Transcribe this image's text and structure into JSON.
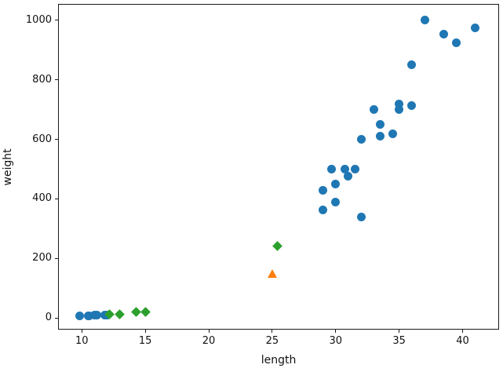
{
  "chart_data": {
    "type": "scatter",
    "title": "",
    "xlabel": "length",
    "ylabel": "weight",
    "xlim": [
      8.19,
      42.81
    ],
    "ylim": [
      -36.8,
      1052.6
    ],
    "x_ticks": [
      10,
      15,
      20,
      25,
      30,
      35,
      40
    ],
    "y_ticks": [
      0,
      200,
      400,
      600,
      800,
      1000
    ],
    "grid": false,
    "legend": "none",
    "series": [
      {
        "name": "blue-circles",
        "marker": "circle",
        "color": "#1f77b4",
        "points": [
          [
            9.8,
            6.7
          ],
          [
            10.5,
            7.5
          ],
          [
            10.6,
            7.0
          ],
          [
            11.0,
            9.7
          ],
          [
            11.2,
            9.8
          ],
          [
            11.8,
            10.0
          ],
          [
            12.0,
            9.8
          ],
          [
            29.0,
            363
          ],
          [
            29.0,
            430
          ],
          [
            29.7,
            500
          ],
          [
            30.0,
            390
          ],
          [
            30.0,
            450
          ],
          [
            30.7,
            500
          ],
          [
            31.0,
            475
          ],
          [
            31.5,
            500
          ],
          [
            32.0,
            340
          ],
          [
            32.0,
            600
          ],
          [
            33.0,
            700
          ],
          [
            33.5,
            610
          ],
          [
            33.5,
            650
          ],
          [
            34.5,
            620
          ],
          [
            35.0,
            700
          ],
          [
            35.0,
            720
          ],
          [
            36.0,
            714
          ],
          [
            36.0,
            850
          ],
          [
            37.0,
            1000
          ],
          [
            38.5,
            955
          ],
          [
            39.5,
            925
          ],
          [
            41.0,
            975
          ]
        ]
      },
      {
        "name": "green-diamonds",
        "marker": "diamond",
        "color": "#2ca02c",
        "points": [
          [
            12.2,
            12.2
          ],
          [
            13.0,
            12.2
          ],
          [
            14.3,
            19.7
          ],
          [
            15.0,
            19.9
          ],
          [
            25.4,
            242
          ]
        ]
      },
      {
        "name": "orange-triangle",
        "marker": "triangle-up",
        "color": "#ff7f0e",
        "points": [
          [
            25.0,
            150.0
          ]
        ]
      }
    ]
  }
}
